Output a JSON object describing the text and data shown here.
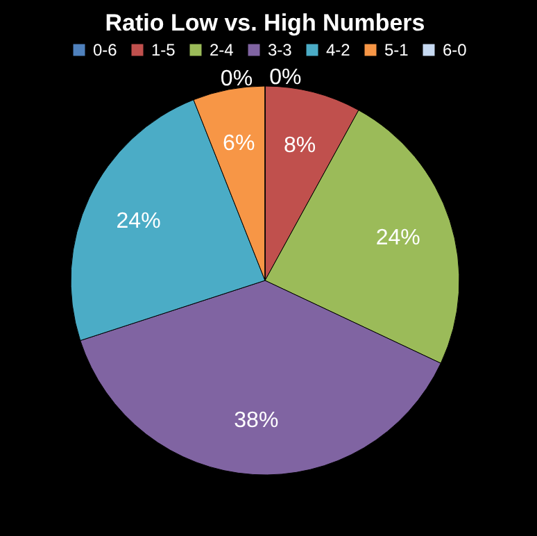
{
  "chart_data": {
    "type": "pie",
    "title": "Ratio Low vs. High Numbers",
    "categories": [
      "0-6",
      "1-5",
      "2-4",
      "3-3",
      "4-2",
      "5-1",
      "6-0"
    ],
    "values": [
      0,
      8,
      24,
      38,
      24,
      6,
      0
    ],
    "value_labels": [
      "0%",
      "8%",
      "24%",
      "38%",
      "24%",
      "6%",
      "0%"
    ],
    "colors": [
      "#4f81bd",
      "#c0504d",
      "#9bbb59",
      "#8064a2",
      "#4bacc6",
      "#f79646",
      "#c6d9f1"
    ],
    "legend": "top"
  }
}
